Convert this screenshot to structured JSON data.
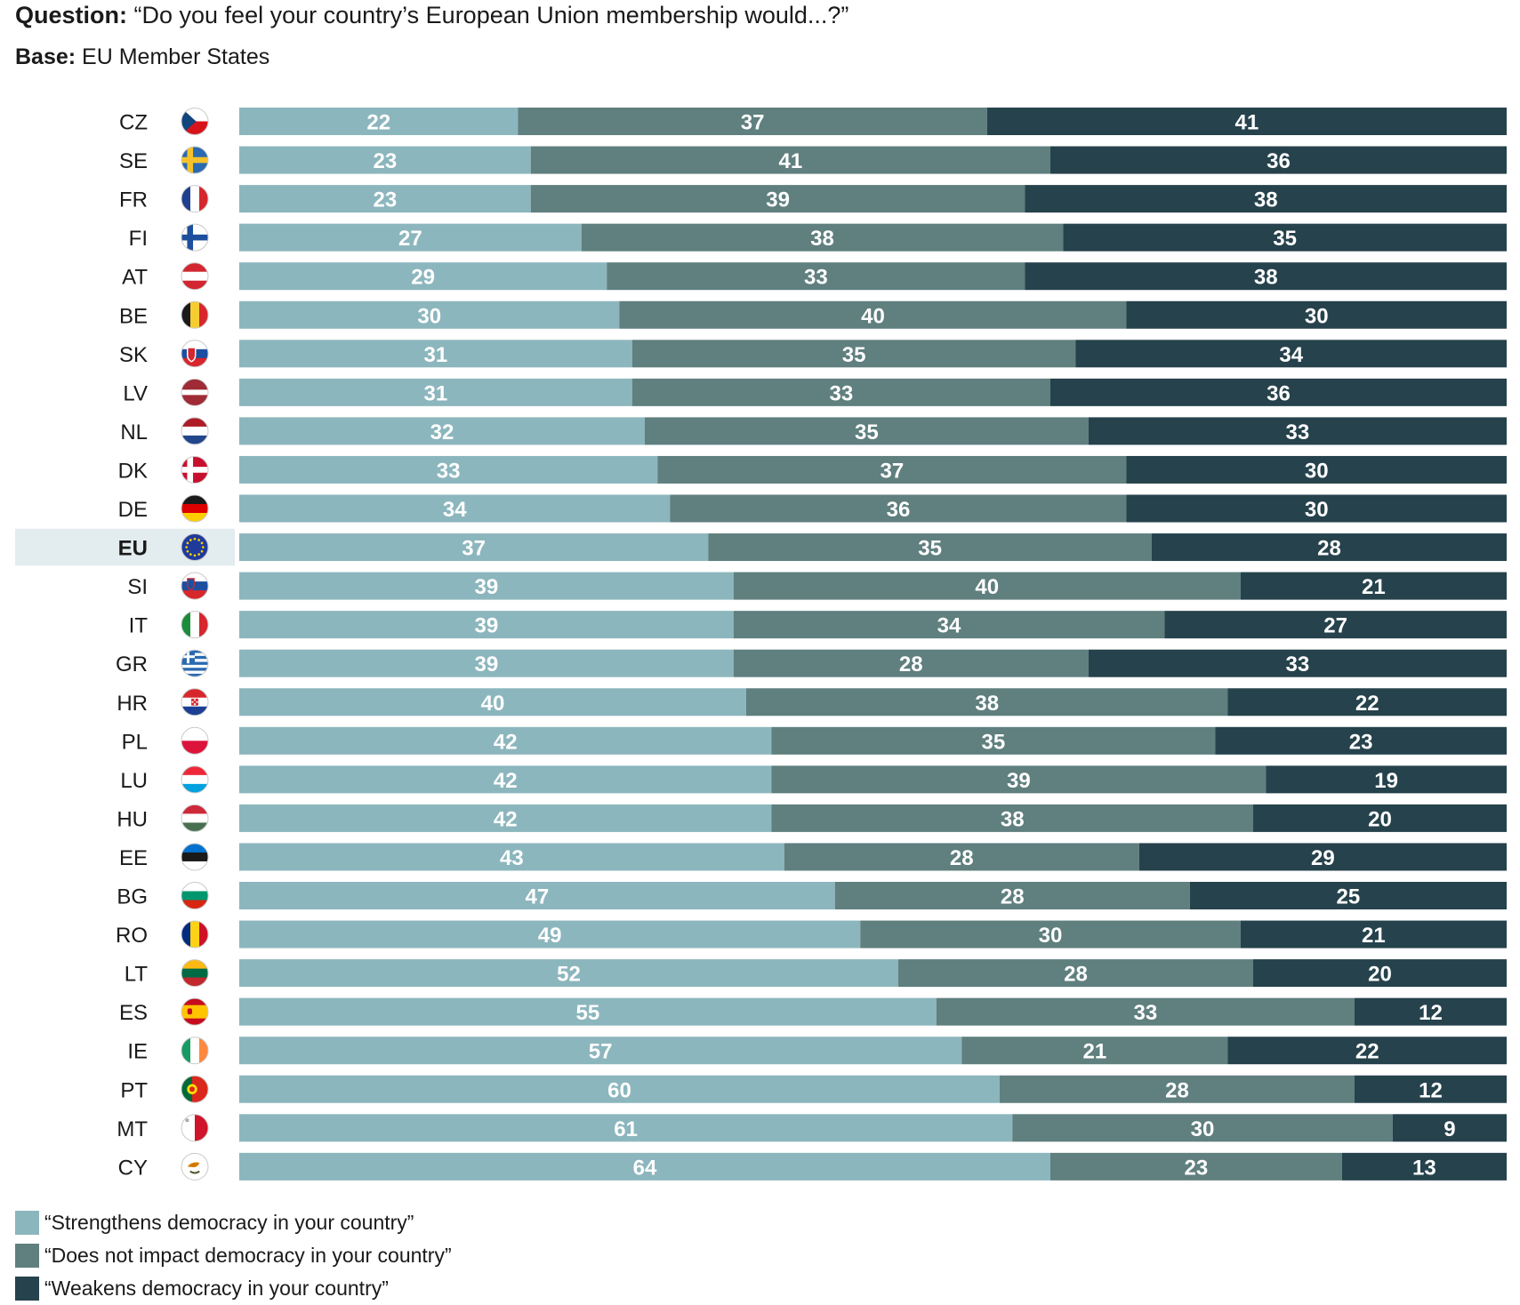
{
  "header": {
    "question_label": "Question:",
    "question_text": "“Do you feel your country’s European Union membership would...?”",
    "base_label": "Base:",
    "base_text": "EU Member States"
  },
  "colors": {
    "strengthens": "#8cb6bd",
    "no_impact": "#607f7f",
    "weakens": "#26424c",
    "highlight_row": "#e3ecef"
  },
  "legend": [
    {
      "label": "“Strengthens democracy in your country”",
      "color_key": "strengthens"
    },
    {
      "label": "“Does not impact democracy in your country”",
      "color_key": "no_impact"
    },
    {
      "label": "“Weakens democracy in your country”",
      "color_key": "weakens"
    }
  ],
  "chart_data": {
    "type": "bar",
    "orientation": "horizontal",
    "stacked": true,
    "title": "",
    "xlabel": "",
    "ylabel": "",
    "xlim": [
      0,
      100
    ],
    "grid": false,
    "legend_position": "bottom-left",
    "highlight_category": "EU",
    "categories": [
      "CZ",
      "SE",
      "FR",
      "FI",
      "AT",
      "BE",
      "SK",
      "LV",
      "NL",
      "DK",
      "DE",
      "EU",
      "SI",
      "IT",
      "GR",
      "HR",
      "PL",
      "LU",
      "HU",
      "EE",
      "BG",
      "RO",
      "LT",
      "ES",
      "IE",
      "PT",
      "MT",
      "CY"
    ],
    "flags": [
      "cz-flag-icon",
      "se-flag-icon",
      "fr-flag-icon",
      "fi-flag-icon",
      "at-flag-icon",
      "be-flag-icon",
      "sk-flag-icon",
      "lv-flag-icon",
      "nl-flag-icon",
      "dk-flag-icon",
      "de-flag-icon",
      "eu-flag-icon",
      "si-flag-icon",
      "it-flag-icon",
      "gr-flag-icon",
      "hr-flag-icon",
      "pl-flag-icon",
      "lu-flag-icon",
      "hu-flag-icon",
      "ee-flag-icon",
      "bg-flag-icon",
      "ro-flag-icon",
      "lt-flag-icon",
      "es-flag-icon",
      "ie-flag-icon",
      "pt-flag-icon",
      "mt-flag-icon",
      "cy-flag-icon"
    ],
    "series": [
      {
        "name": "“Strengthens democracy in your country”",
        "values": [
          22,
          23,
          23,
          27,
          29,
          30,
          31,
          31,
          32,
          33,
          34,
          37,
          39,
          39,
          39,
          40,
          42,
          42,
          42,
          43,
          47,
          49,
          52,
          55,
          57,
          60,
          61,
          64
        ]
      },
      {
        "name": "“Does not impact democracy in your country”",
        "values": [
          37,
          41,
          39,
          38,
          33,
          40,
          35,
          33,
          35,
          37,
          36,
          35,
          40,
          34,
          28,
          38,
          35,
          39,
          38,
          28,
          28,
          30,
          28,
          33,
          21,
          28,
          30,
          23
        ]
      },
      {
        "name": "“Weakens democracy in your country”",
        "values": [
          41,
          36,
          38,
          35,
          38,
          30,
          34,
          36,
          33,
          30,
          30,
          28,
          21,
          27,
          33,
          22,
          23,
          19,
          20,
          29,
          25,
          21,
          20,
          12,
          22,
          12,
          9,
          13
        ]
      }
    ]
  }
}
